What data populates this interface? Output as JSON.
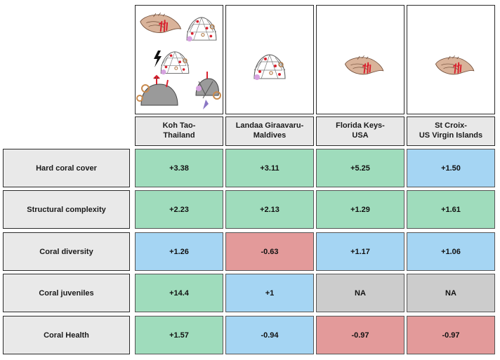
{
  "colors": {
    "increase_green": "#9fdcbc",
    "neutral_blue": "#a5d5f3",
    "decrease_red": "#e39a9a",
    "na_grey": "#cccccc"
  },
  "sites": [
    {
      "name": "Koh Tao-\nThailand",
      "panel_icons": [
        "fish-icon",
        "coral-dome-icon",
        "lightning-icon",
        "coral-dome-icon",
        "rock-icon",
        "diver-icon"
      ]
    },
    {
      "name": "Landaa Giraavaru-\nMaldives",
      "panel_icons": [
        "coral-dome-icon"
      ]
    },
    {
      "name": "Florida Keys-\nUSA",
      "panel_icons": [
        "fish-icon"
      ]
    },
    {
      "name": "St Croix-\nUS Virgin Islands",
      "panel_icons": [
        "fish-icon"
      ]
    }
  ],
  "metrics": [
    {
      "label": "Hard coral cover",
      "values": [
        "+3.38",
        "+3.11",
        "+5.25",
        "+1.50"
      ],
      "status": [
        "increase",
        "increase",
        "increase",
        "neutral"
      ]
    },
    {
      "label": "Structural complexity",
      "values": [
        "+2.23",
        "+2.13",
        "+1.29",
        "+1.61"
      ],
      "status": [
        "increase",
        "increase",
        "increase",
        "increase"
      ]
    },
    {
      "label": "Coral diversity",
      "values": [
        "+1.26",
        "-0.63",
        "+1.17",
        "+1.06"
      ],
      "status": [
        "neutral",
        "decrease",
        "neutral",
        "neutral"
      ]
    },
    {
      "label": "Coral juveniles",
      "values": [
        "+14.4",
        "+1",
        "NA",
        "NA"
      ],
      "status": [
        "increase",
        "neutral",
        "na",
        "na"
      ]
    },
    {
      "label": "Coral Health",
      "values": [
        "+1.57",
        "-0.94",
        "-0.97",
        "-0.97"
      ],
      "status": [
        "increase",
        "neutral",
        "decrease",
        "decrease"
      ]
    }
  ]
}
